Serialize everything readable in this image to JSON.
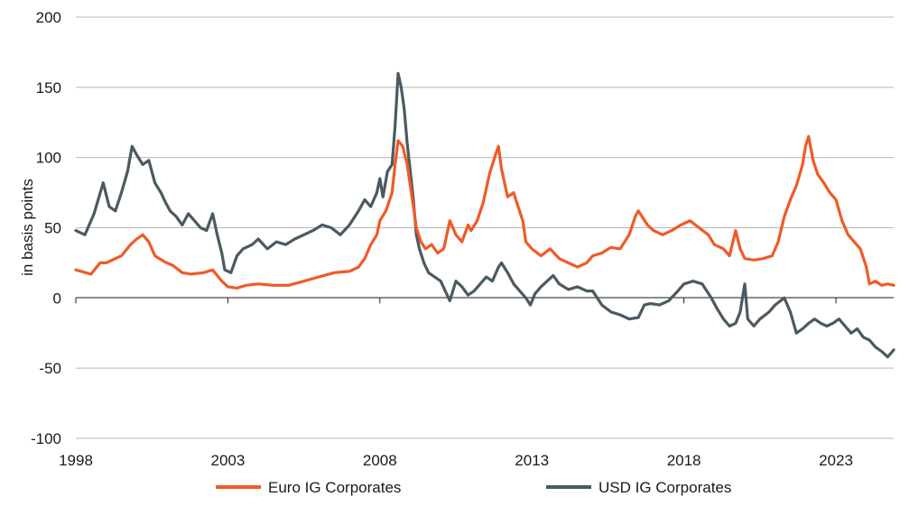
{
  "chart_data": {
    "type": "line",
    "title": "",
    "xlabel": "",
    "ylabel": "in basis points",
    "xlim": [
      1998,
      2024.9
    ],
    "ylim": [
      -100,
      200
    ],
    "x_ticks": [
      "1998",
      "2003",
      "2008",
      "2013",
      "2018",
      "2023"
    ],
    "y_ticks": [
      "200",
      "150",
      "100",
      "50",
      "0",
      "-50",
      "-100"
    ],
    "grid": "horizontal",
    "legend_position": "bottom",
    "series": [
      {
        "name": "Euro IG Corporates",
        "color": "#f05a28",
        "points": [
          [
            1998.0,
            20
          ],
          [
            1998.5,
            17
          ],
          [
            1998.8,
            25
          ],
          [
            1999.0,
            25
          ],
          [
            1999.3,
            28
          ],
          [
            1999.5,
            30
          ],
          [
            1999.8,
            38
          ],
          [
            2000.0,
            42
          ],
          [
            2000.2,
            45
          ],
          [
            2000.4,
            40
          ],
          [
            2000.6,
            30
          ],
          [
            2000.9,
            26
          ],
          [
            2001.2,
            23
          ],
          [
            2001.5,
            18
          ],
          [
            2001.8,
            17
          ],
          [
            2002.2,
            18
          ],
          [
            2002.5,
            20
          ],
          [
            2002.8,
            12
          ],
          [
            2003.0,
            8
          ],
          [
            2003.3,
            7
          ],
          [
            2003.6,
            9
          ],
          [
            2004.0,
            10
          ],
          [
            2004.5,
            9
          ],
          [
            2005.0,
            9
          ],
          [
            2005.5,
            12
          ],
          [
            2006.0,
            15
          ],
          [
            2006.5,
            18
          ],
          [
            2007.0,
            19
          ],
          [
            2007.3,
            22
          ],
          [
            2007.5,
            28
          ],
          [
            2007.7,
            38
          ],
          [
            2007.9,
            45
          ],
          [
            2008.0,
            55
          ],
          [
            2008.2,
            62
          ],
          [
            2008.4,
            75
          ],
          [
            2008.5,
            95
          ],
          [
            2008.6,
            112
          ],
          [
            2008.75,
            108
          ],
          [
            2008.9,
            95
          ],
          [
            2009.0,
            80
          ],
          [
            2009.1,
            65
          ],
          [
            2009.2,
            50
          ],
          [
            2009.35,
            40
          ],
          [
            2009.5,
            35
          ],
          [
            2009.7,
            38
          ],
          [
            2009.9,
            32
          ],
          [
            2010.1,
            35
          ],
          [
            2010.3,
            55
          ],
          [
            2010.5,
            45
          ],
          [
            2010.7,
            40
          ],
          [
            2010.9,
            52
          ],
          [
            2011.0,
            48
          ],
          [
            2011.2,
            55
          ],
          [
            2011.4,
            68
          ],
          [
            2011.6,
            88
          ],
          [
            2011.8,
            102
          ],
          [
            2011.9,
            108
          ],
          [
            2012.0,
            92
          ],
          [
            2012.2,
            72
          ],
          [
            2012.4,
            75
          ],
          [
            2012.5,
            68
          ],
          [
            2012.7,
            55
          ],
          [
            2012.8,
            40
          ],
          [
            2013.0,
            35
          ],
          [
            2013.3,
            30
          ],
          [
            2013.6,
            35
          ],
          [
            2013.9,
            28
          ],
          [
            2014.2,
            25
          ],
          [
            2014.5,
            22
          ],
          [
            2014.8,
            25
          ],
          [
            2015.0,
            30
          ],
          [
            2015.3,
            32
          ],
          [
            2015.6,
            36
          ],
          [
            2015.9,
            35
          ],
          [
            2016.2,
            45
          ],
          [
            2016.4,
            58
          ],
          [
            2016.5,
            62
          ],
          [
            2016.8,
            52
          ],
          [
            2017.0,
            48
          ],
          [
            2017.3,
            45
          ],
          [
            2017.6,
            48
          ],
          [
            2017.9,
            52
          ],
          [
            2018.2,
            55
          ],
          [
            2018.5,
            50
          ],
          [
            2018.8,
            45
          ],
          [
            2019.0,
            38
          ],
          [
            2019.3,
            35
          ],
          [
            2019.5,
            30
          ],
          [
            2019.7,
            48
          ],
          [
            2019.85,
            35
          ],
          [
            2020.0,
            28
          ],
          [
            2020.3,
            27
          ],
          [
            2020.6,
            28
          ],
          [
            2020.9,
            30
          ],
          [
            2021.1,
            40
          ],
          [
            2021.3,
            58
          ],
          [
            2021.5,
            70
          ],
          [
            2021.7,
            80
          ],
          [
            2021.9,
            95
          ],
          [
            2022.0,
            108
          ],
          [
            2022.1,
            115
          ],
          [
            2022.25,
            98
          ],
          [
            2022.4,
            88
          ],
          [
            2022.6,
            82
          ],
          [
            2022.8,
            75
          ],
          [
            2023.0,
            70
          ],
          [
            2023.2,
            55
          ],
          [
            2023.4,
            45
          ],
          [
            2023.6,
            40
          ],
          [
            2023.8,
            35
          ],
          [
            2024.0,
            22
          ],
          [
            2024.1,
            10
          ],
          [
            2024.3,
            12
          ],
          [
            2024.5,
            9
          ],
          [
            2024.7,
            10
          ],
          [
            2024.9,
            9
          ]
        ]
      },
      {
        "name": "USD IG Corporates",
        "color": "#4b5a61",
        "points": [
          [
            1998.0,
            48
          ],
          [
            1998.3,
            45
          ],
          [
            1998.6,
            60
          ],
          [
            1998.9,
            82
          ],
          [
            1999.1,
            65
          ],
          [
            1999.3,
            62
          ],
          [
            1999.5,
            75
          ],
          [
            1999.7,
            90
          ],
          [
            1999.85,
            108
          ],
          [
            2000.0,
            102
          ],
          [
            2000.2,
            95
          ],
          [
            2000.4,
            98
          ],
          [
            2000.6,
            82
          ],
          [
            2000.8,
            75
          ],
          [
            2000.95,
            68
          ],
          [
            2001.1,
            62
          ],
          [
            2001.3,
            58
          ],
          [
            2001.5,
            52
          ],
          [
            2001.7,
            60
          ],
          [
            2001.9,
            55
          ],
          [
            2002.1,
            50
          ],
          [
            2002.3,
            48
          ],
          [
            2002.5,
            60
          ],
          [
            2002.65,
            45
          ],
          [
            2002.8,
            32
          ],
          [
            2002.9,
            20
          ],
          [
            2003.1,
            18
          ],
          [
            2003.3,
            30
          ],
          [
            2003.5,
            35
          ],
          [
            2003.8,
            38
          ],
          [
            2004.0,
            42
          ],
          [
            2004.3,
            35
          ],
          [
            2004.6,
            40
          ],
          [
            2004.9,
            38
          ],
          [
            2005.2,
            42
          ],
          [
            2005.5,
            45
          ],
          [
            2005.8,
            48
          ],
          [
            2006.1,
            52
          ],
          [
            2006.4,
            50
          ],
          [
            2006.7,
            45
          ],
          [
            2007.0,
            52
          ],
          [
            2007.3,
            62
          ],
          [
            2007.5,
            70
          ],
          [
            2007.7,
            65
          ],
          [
            2007.9,
            75
          ],
          [
            2008.0,
            85
          ],
          [
            2008.1,
            72
          ],
          [
            2008.25,
            90
          ],
          [
            2008.4,
            95
          ],
          [
            2008.5,
            122
          ],
          [
            2008.6,
            160
          ],
          [
            2008.7,
            150
          ],
          [
            2008.8,
            135
          ],
          [
            2008.9,
            110
          ],
          [
            2009.0,
            90
          ],
          [
            2009.1,
            70
          ],
          [
            2009.2,
            45
          ],
          [
            2009.3,
            35
          ],
          [
            2009.45,
            25
          ],
          [
            2009.6,
            18
          ],
          [
            2009.8,
            15
          ],
          [
            2010.0,
            12
          ],
          [
            2010.15,
            5
          ],
          [
            2010.3,
            -2
          ],
          [
            2010.5,
            12
          ],
          [
            2010.7,
            8
          ],
          [
            2010.9,
            2
          ],
          [
            2011.1,
            5
          ],
          [
            2011.3,
            10
          ],
          [
            2011.5,
            15
          ],
          [
            2011.7,
            12
          ],
          [
            2011.9,
            22
          ],
          [
            2012.0,
            25
          ],
          [
            2012.2,
            18
          ],
          [
            2012.4,
            10
          ],
          [
            2012.6,
            5
          ],
          [
            2012.8,
            0
          ],
          [
            2012.95,
            -5
          ],
          [
            2013.1,
            3
          ],
          [
            2013.3,
            8
          ],
          [
            2013.5,
            12
          ],
          [
            2013.7,
            16
          ],
          [
            2013.9,
            10
          ],
          [
            2014.2,
            6
          ],
          [
            2014.5,
            8
          ],
          [
            2014.8,
            5
          ],
          [
            2015.0,
            5
          ],
          [
            2015.3,
            -5
          ],
          [
            2015.6,
            -10
          ],
          [
            2015.9,
            -12
          ],
          [
            2016.2,
            -15
          ],
          [
            2016.5,
            -14
          ],
          [
            2016.7,
            -5
          ],
          [
            2016.9,
            -4
          ],
          [
            2017.2,
            -5
          ],
          [
            2017.5,
            -2
          ],
          [
            2017.8,
            5
          ],
          [
            2018.0,
            10
          ],
          [
            2018.3,
            12
          ],
          [
            2018.6,
            10
          ],
          [
            2018.9,
            0
          ],
          [
            2019.1,
            -8
          ],
          [
            2019.3,
            -15
          ],
          [
            2019.5,
            -20
          ],
          [
            2019.7,
            -18
          ],
          [
            2019.85,
            -10
          ],
          [
            2020.0,
            10
          ],
          [
            2020.1,
            -15
          ],
          [
            2020.3,
            -20
          ],
          [
            2020.5,
            -15
          ],
          [
            2020.8,
            -10
          ],
          [
            2021.0,
            -5
          ],
          [
            2021.3,
            0
          ],
          [
            2021.5,
            -10
          ],
          [
            2021.7,
            -25
          ],
          [
            2021.9,
            -22
          ],
          [
            2022.1,
            -18
          ],
          [
            2022.3,
            -15
          ],
          [
            2022.5,
            -18
          ],
          [
            2022.7,
            -20
          ],
          [
            2022.9,
            -18
          ],
          [
            2023.1,
            -15
          ],
          [
            2023.3,
            -20
          ],
          [
            2023.5,
            -25
          ],
          [
            2023.7,
            -22
          ],
          [
            2023.9,
            -28
          ],
          [
            2024.1,
            -30
          ],
          [
            2024.3,
            -35
          ],
          [
            2024.5,
            -38
          ],
          [
            2024.7,
            -42
          ],
          [
            2024.9,
            -37
          ]
        ]
      }
    ]
  }
}
